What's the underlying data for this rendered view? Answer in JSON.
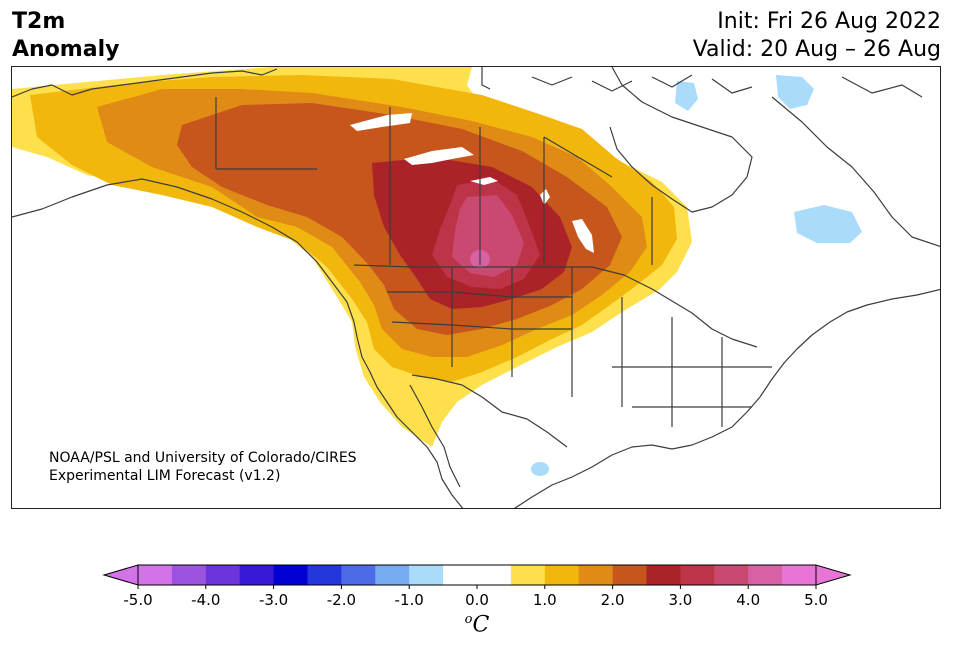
{
  "title": {
    "variable": "T2m",
    "subtitle": "Anomaly",
    "init": "Init: Fri 26 Aug 2022",
    "valid": "Valid: 20 Aug – 26 Aug"
  },
  "credit": {
    "line1": "NOAA/PSL and University of Colorado/CIRES",
    "line2": "Experimental LIM Forecast (v1.2)"
  },
  "map": {
    "region": "North America",
    "field": "2 m temperature anomaly",
    "coastline_color": "#3c3c3c",
    "peak_anomaly_C": 4.5,
    "warm_center": "Saskatchewan / Alberta",
    "cool_spots": [
      "Hudson Bay",
      "Northern Quebec",
      "Southern Baffin",
      "Northern Mexico"
    ]
  },
  "colorbar": {
    "unit_symbol": "o",
    "unit_letter": "C",
    "bins": [
      {
        "lo": -5.0,
        "hi": -4.5,
        "color": "#d274e8"
      },
      {
        "lo": -4.5,
        "hi": -4.0,
        "color": "#9b53e0"
      },
      {
        "lo": -4.0,
        "hi": -3.5,
        "color": "#6b35db"
      },
      {
        "lo": -3.5,
        "hi": -3.0,
        "color": "#3718d6"
      },
      {
        "lo": -3.0,
        "hi": -2.5,
        "color": "#0000d2"
      },
      {
        "lo": -2.5,
        "hi": -2.0,
        "color": "#2337dc"
      },
      {
        "lo": -2.0,
        "hi": -1.5,
        "color": "#4d6be6"
      },
      {
        "lo": -1.5,
        "hi": -1.0,
        "color": "#77acf2"
      },
      {
        "lo": -1.0,
        "hi": -0.5,
        "color": "#a9dbfa"
      },
      {
        "lo": -0.5,
        "hi": 0.0,
        "color": "#ffffff"
      },
      {
        "lo": 0.0,
        "hi": 0.5,
        "color": "#ffffff"
      },
      {
        "lo": 0.5,
        "hi": 1.0,
        "color": "#fee04c"
      },
      {
        "lo": 1.0,
        "hi": 1.5,
        "color": "#f2b70d"
      },
      {
        "lo": 1.5,
        "hi": 2.0,
        "color": "#e08b15"
      },
      {
        "lo": 2.0,
        "hi": 2.5,
        "color": "#c6561b"
      },
      {
        "lo": 2.5,
        "hi": 3.0,
        "color": "#ab2328"
      },
      {
        "lo": 3.0,
        "hi": 3.5,
        "color": "#bd3348"
      },
      {
        "lo": 3.5,
        "hi": 4.0,
        "color": "#c94971"
      },
      {
        "lo": 4.0,
        "hi": 4.5,
        "color": "#d761a5"
      },
      {
        "lo": 4.5,
        "hi": 5.0,
        "color": "#e874d6"
      }
    ],
    "under_color": "#d274e8",
    "over_color": "#e874d6",
    "tick_values": [
      -5.0,
      -4.0,
      -3.0,
      -2.0,
      -1.0,
      0.0,
      1.0,
      2.0,
      3.0,
      4.0,
      5.0
    ],
    "tick_labels": [
      "-5.0",
      "-4.0",
      "-3.0",
      "-2.0",
      "-1.0",
      "0.0",
      "1.0",
      "2.0",
      "3.0",
      "4.0",
      "5.0"
    ]
  }
}
